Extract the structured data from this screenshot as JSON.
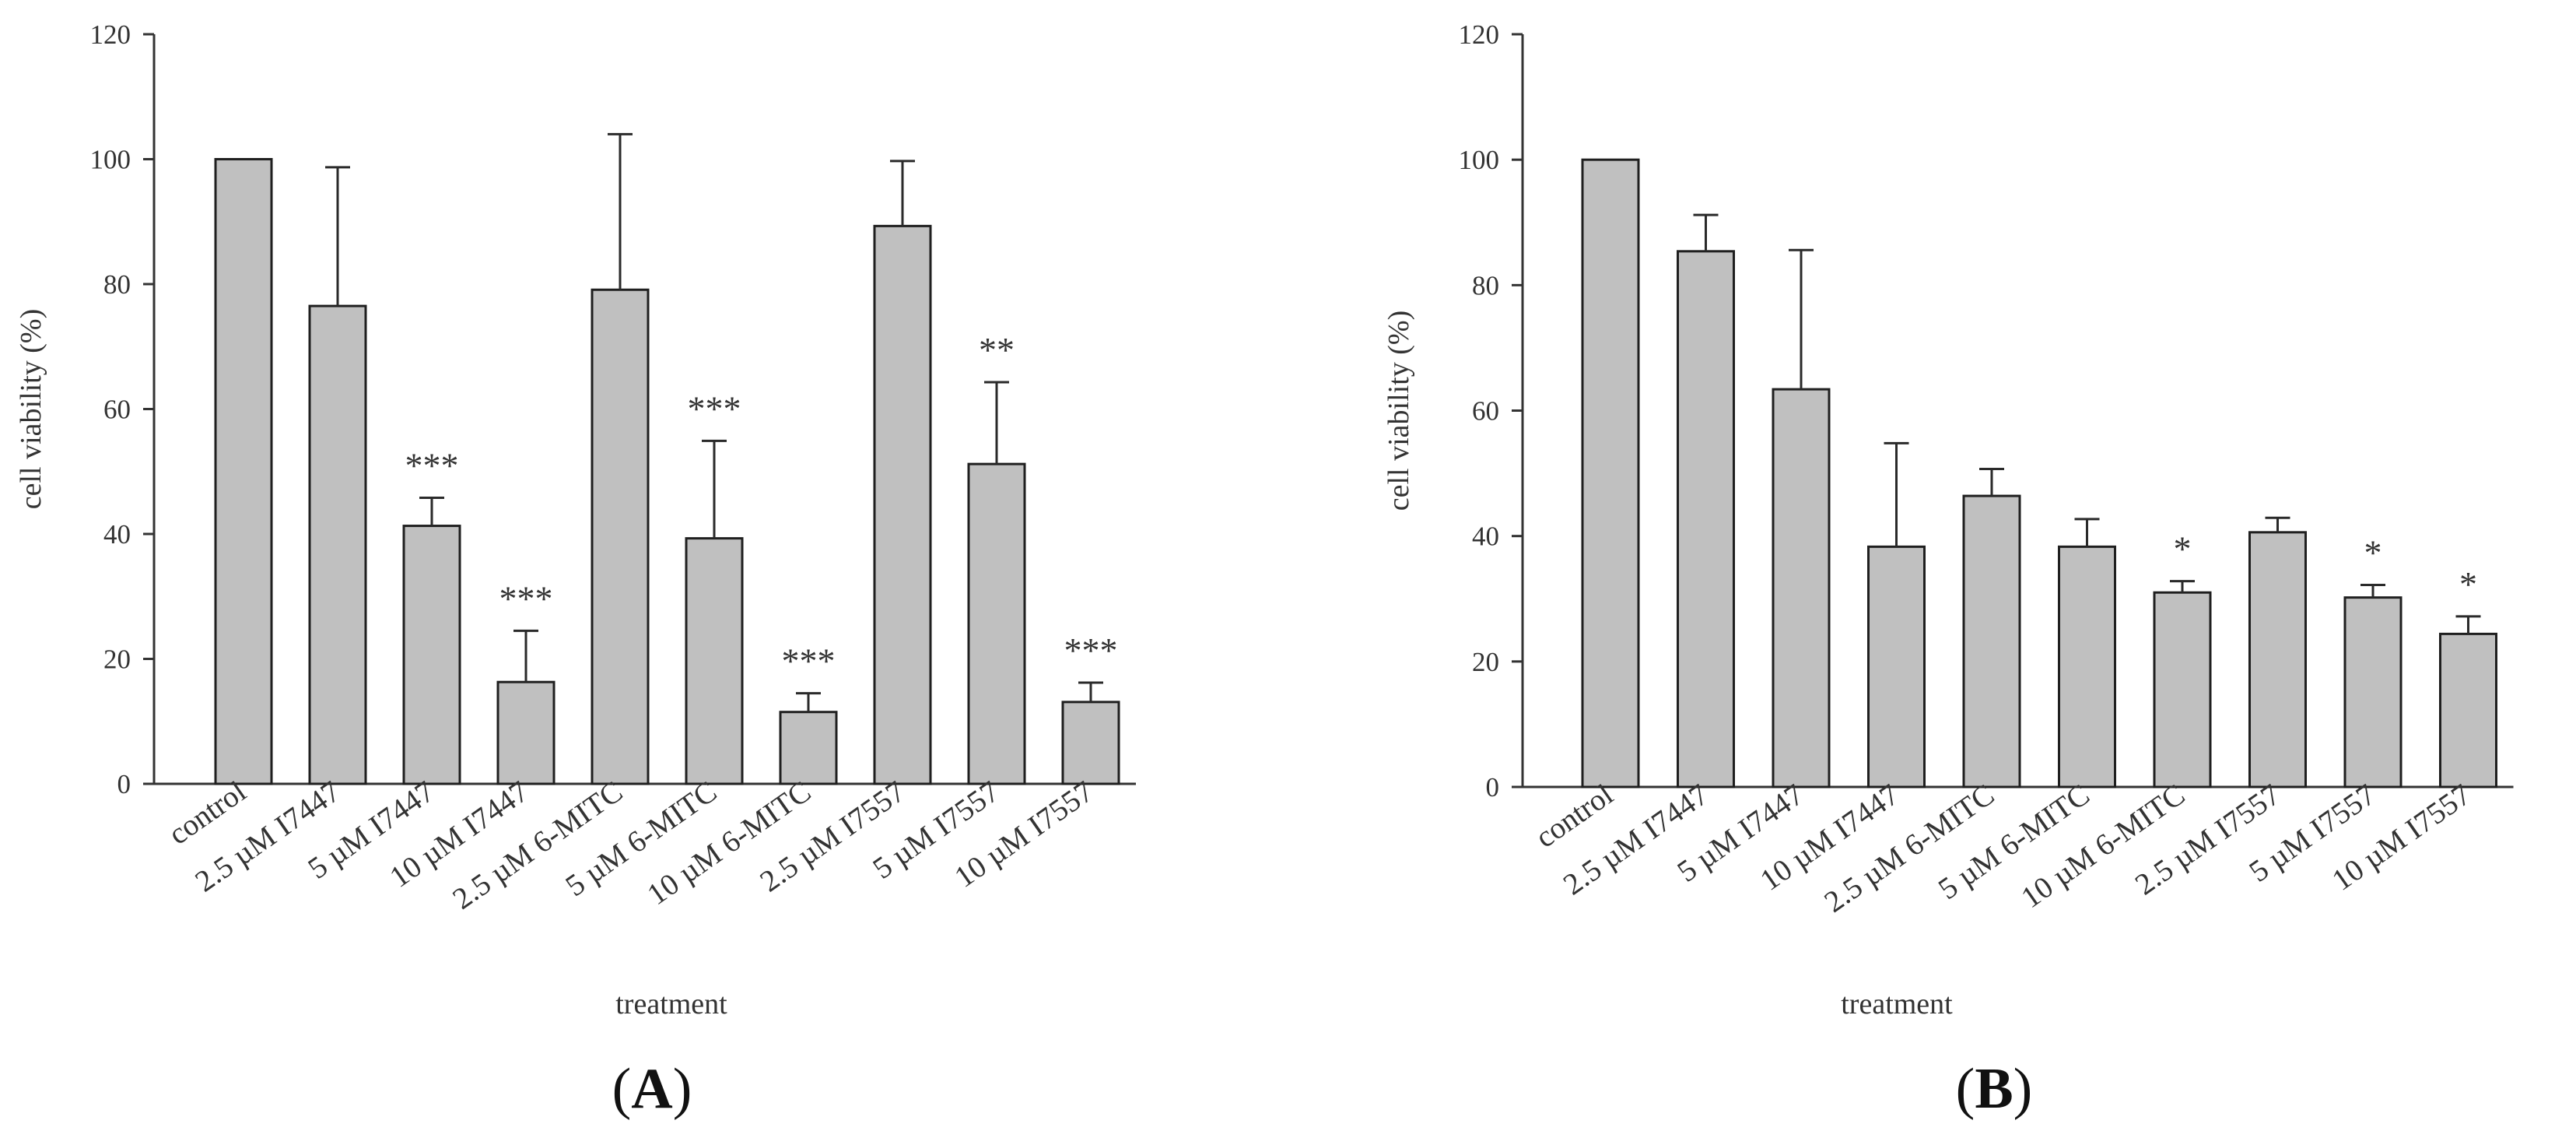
{
  "chart_data": [
    {
      "type": "bar",
      "panel_label": "A",
      "xlabel": "treatment",
      "ylabel": "cell viability (%)",
      "ylim": [
        0,
        120
      ],
      "yticks": [
        0,
        20,
        40,
        60,
        80,
        100,
        120
      ],
      "categories": [
        "control",
        "2.5 µM I7447",
        "5 µM I7447",
        "10 µM I7447",
        "2.5 µM 6-MITC",
        "5 µM 6-MITC",
        "10 µM 6-MITC",
        "2.5 µM I7557",
        "5 µM I7557",
        "10 µM I7557"
      ],
      "values": [
        100,
        76.5,
        41.3,
        16.3,
        79.1,
        39.3,
        11.5,
        89.3,
        51.2,
        13.1
      ],
      "error": [
        0,
        22.2,
        4.5,
        8.2,
        24.9,
        15.6,
        3.0,
        10.4,
        13.1,
        3.1
      ],
      "significance": [
        "",
        "",
        "***",
        "***",
        "",
        "***",
        "***",
        "",
        "**",
        "***"
      ],
      "grid": false,
      "color": "#c0c0c0"
    },
    {
      "type": "bar",
      "panel_label": "B",
      "xlabel": "treatment",
      "ylabel": "cell viability (%)",
      "ylim": [
        0,
        120
      ],
      "yticks": [
        0,
        20,
        40,
        60,
        80,
        100,
        120
      ],
      "categories": [
        "control",
        "2.5 µM I7447",
        "5 µM I7447",
        "10 µM I7447",
        "2.5 µM 6-MITC",
        "5 µM 6-MITC",
        "10 µM 6-MITC",
        "2.5 µM I7557",
        "5 µM I7557",
        "10 µM I7557"
      ],
      "values": [
        100,
        85.4,
        63.4,
        38.3,
        46.4,
        38.3,
        31.0,
        40.6,
        30.2,
        24.4
      ],
      "error": [
        0,
        5.8,
        22.2,
        16.5,
        4.3,
        4.4,
        1.8,
        2.3,
        2.0,
        2.8
      ],
      "significance": [
        "",
        "",
        "",
        "",
        "",
        "",
        "*",
        "",
        "*",
        "*"
      ],
      "grid": false,
      "color": "#c0c0c0"
    }
  ]
}
